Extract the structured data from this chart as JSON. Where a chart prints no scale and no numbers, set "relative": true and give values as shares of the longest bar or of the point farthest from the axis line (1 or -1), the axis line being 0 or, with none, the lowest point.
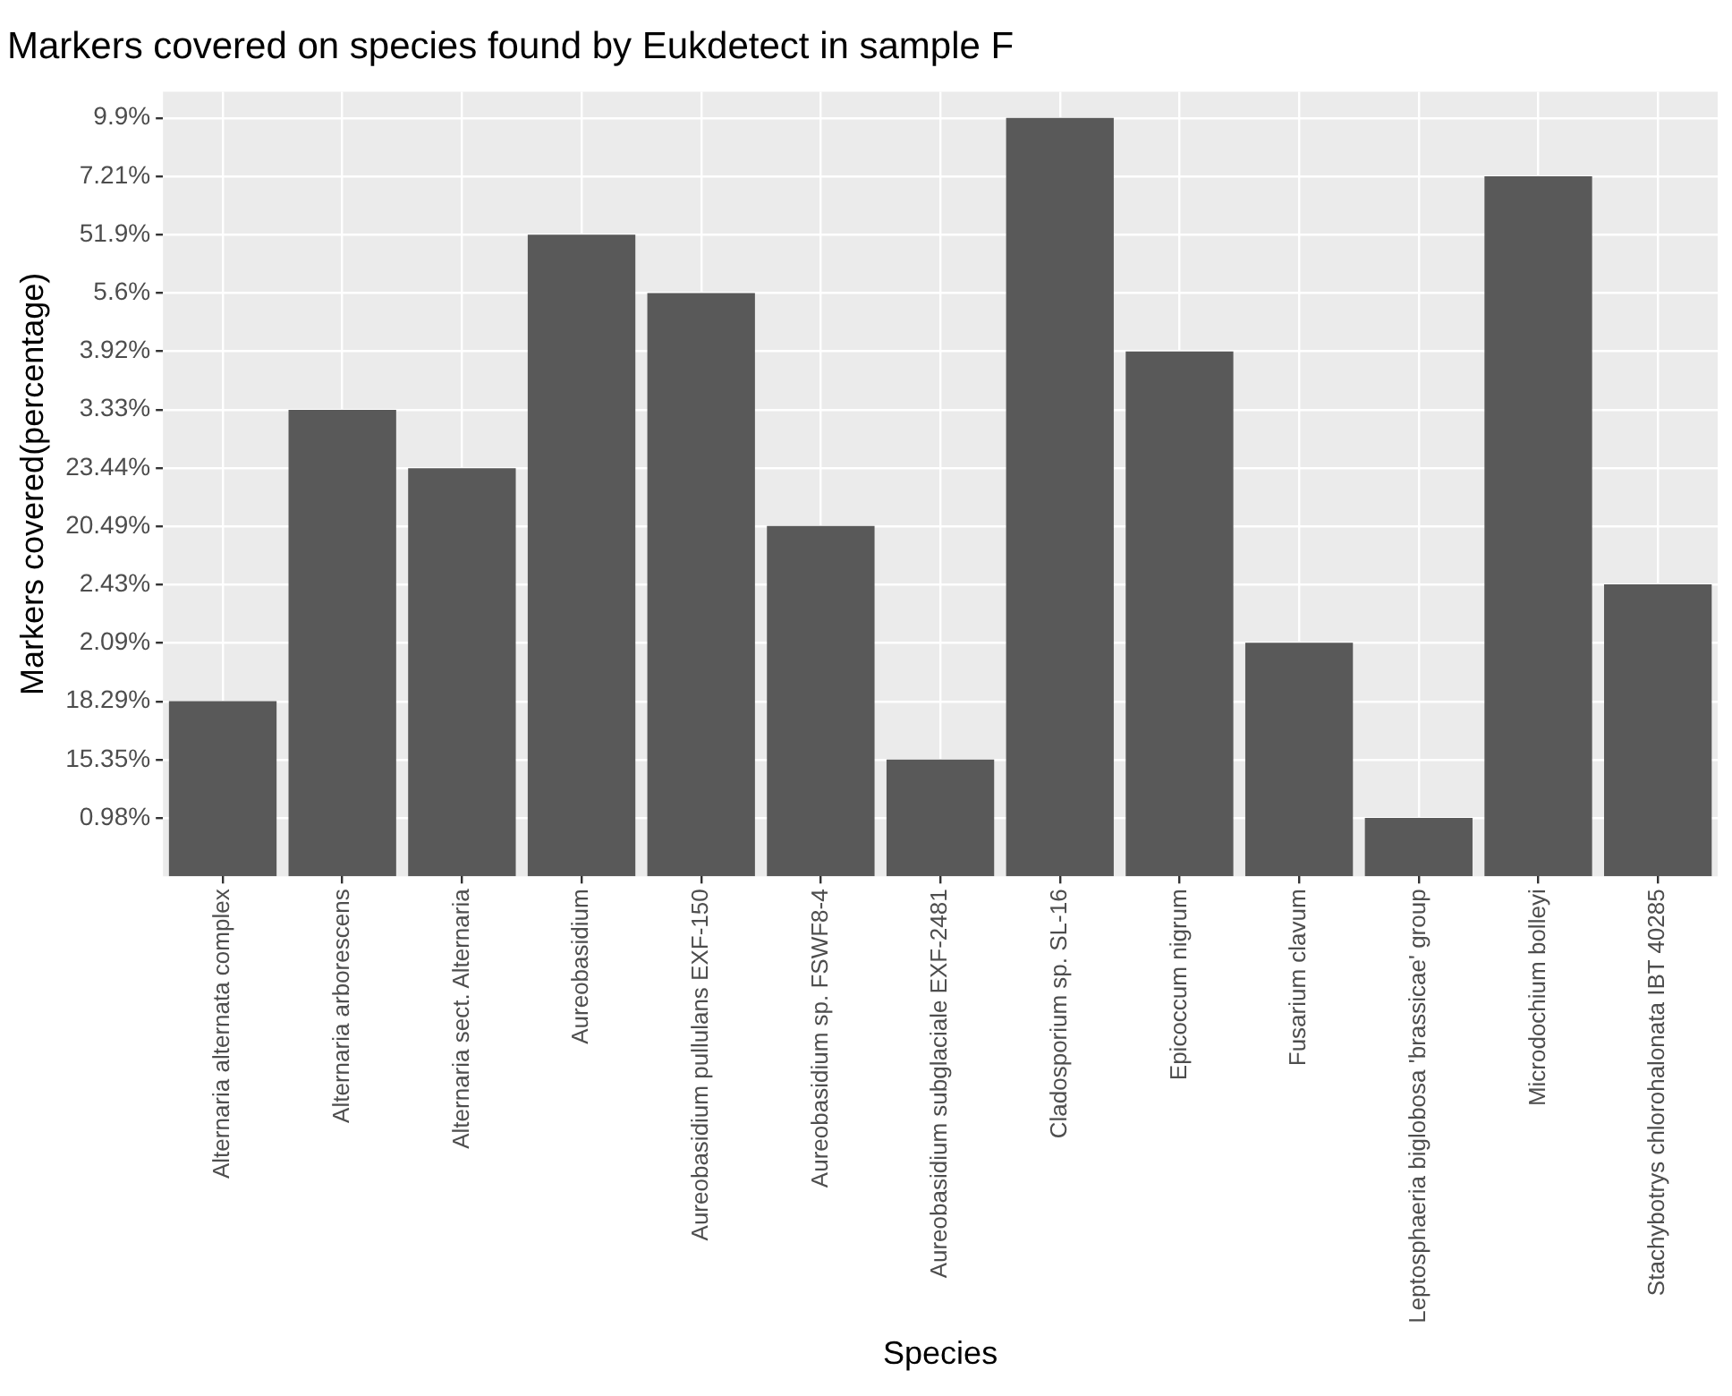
{
  "chart_data": {
    "type": "bar",
    "title": "Markers covered on species found by Eukdetect in sample F",
    "xlabel": "Species",
    "ylabel": "Markers covered(percentage)",
    "categories": [
      "Alternaria alternata complex",
      "Alternaria arborescens",
      "Alternaria sect. Alternaria",
      "Aureobasidium",
      "Aureobasidium pullulans EXF-150",
      "Aureobasidium sp. FSWF8-4",
      "Aureobasidium subglaciale EXF-2481",
      "Cladosporium sp. SL-16",
      "Epicoccum nigrum",
      "Fusarium clavum",
      "Leptosphaeria biglobosa 'brassicae' group",
      "Microdochium bolleyi",
      "Stachybotrys chlorohalonata IBT 40285"
    ],
    "y_categories": [
      "9.9%",
      "7.21%",
      "51.9%",
      "5.6%",
      "3.92%",
      "3.33%",
      "23.44%",
      "20.49%",
      "2.43%",
      "2.09%",
      "18.29%",
      "15.35%",
      "0.98%"
    ],
    "relative": true,
    "values": [
      0.231,
      0.615,
      0.538,
      0.846,
      0.769,
      0.462,
      0.154,
      1,
      0.692,
      0.308,
      0.077,
      0.923,
      0.385
    ],
    "color": "#595959",
    "grid": true
  }
}
